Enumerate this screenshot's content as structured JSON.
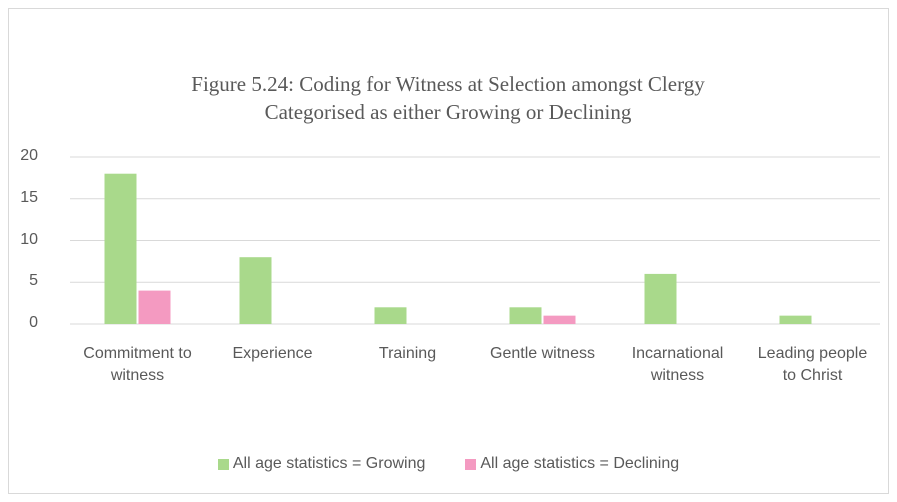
{
  "chart_data": {
    "type": "bar",
    "title": "Figure 5.24: Coding for Witness at Selection amongst Clergy Categorised as either Growing  or Declining",
    "categories": [
      "Commitment to witness",
      "Experience",
      "Training",
      "Gentle witness",
      "Incarnational witness",
      "Leading people to Christ"
    ],
    "series": [
      {
        "name": "All age statistics = Growing",
        "color": "#a9d98b",
        "values": [
          18,
          8,
          2,
          2,
          6,
          1
        ]
      },
      {
        "name": "All age statistics = Declining",
        "color": "#f49ac1",
        "values": [
          4,
          0,
          0,
          1,
          0,
          0
        ]
      }
    ],
    "ylim": [
      0,
      20
    ],
    "yticks": [
      0,
      5,
      10,
      15,
      20
    ],
    "grid": true,
    "legend": "bottom"
  }
}
